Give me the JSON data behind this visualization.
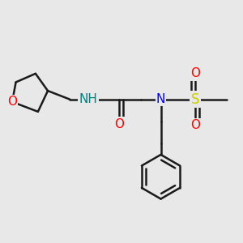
{
  "background_color": "#e8e8e8",
  "bond_color": "#1a1a1a",
  "bond_width": 1.8,
  "atom_colors": {
    "O": "#ff0000",
    "N": "#0000ff",
    "NH": "#008080",
    "S": "#cccc00",
    "C": "#1a1a1a"
  },
  "font_size": 11
}
